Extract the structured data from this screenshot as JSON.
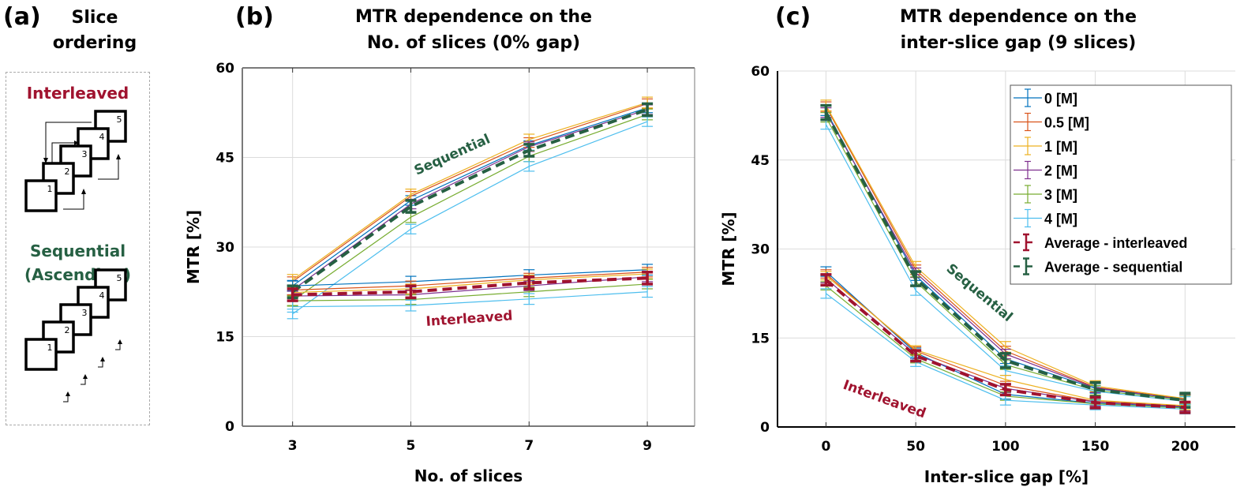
{
  "panel_a": {
    "label": "(a)",
    "title_line1": "Slice",
    "title_line2": "ordering",
    "interleaved_heading": "Interleaved",
    "sequential_heading_line1": "Sequential",
    "sequential_heading_line2": "(Ascending)",
    "slice_numbers": [
      "1",
      "2",
      "3",
      "4",
      "5"
    ],
    "colors": {
      "interleaved": "#a0132f",
      "sequential": "#266043"
    }
  },
  "chart_data": [
    {
      "id": "b",
      "type": "line",
      "label": "(b)",
      "title": "MTR dependence on the No. of slices (0% gap)",
      "title_line1": "MTR dependence on the",
      "title_line2": "No. of slices (0% gap)",
      "xlabel": "No. of slices",
      "ylabel": "MTR [%]",
      "x": [
        3,
        5,
        7,
        9
      ],
      "xticks": [
        "3",
        "5",
        "7",
        "9"
      ],
      "xlim": [
        2.15,
        9.8
      ],
      "ylim": [
        0,
        60
      ],
      "yticks": [
        "0",
        "15",
        "30",
        "45",
        "60"
      ],
      "grid": true,
      "annotations": [
        {
          "text": "Sequential",
          "color": "#266043"
        },
        {
          "text": "Interleaved",
          "color": "#a0132f"
        }
      ],
      "series": [
        {
          "name": "0 [M] - sequential",
          "color": "#0072bd",
          "values": [
            23.5,
            37.8,
            47.0,
            53.3
          ],
          "err": 0.8
        },
        {
          "name": "0.5 [M] - sequential",
          "color": "#d95319",
          "values": [
            24.2,
            38.5,
            47.5,
            54.0
          ],
          "err": 0.8
        },
        {
          "name": "1 [M] - sequential",
          "color": "#edb120",
          "values": [
            24.5,
            38.8,
            48.0,
            54.2
          ],
          "err": 0.9
        },
        {
          "name": "2 [M] - sequential",
          "color": "#7e2f8e",
          "values": [
            22.8,
            37.2,
            46.8,
            53.0
          ],
          "err": 0.8
        },
        {
          "name": "3 [M] - sequential",
          "color": "#77ac30",
          "values": [
            21.0,
            35.0,
            45.2,
            52.2
          ],
          "err": 0.9
        },
        {
          "name": "4 [M] - sequential",
          "color": "#4dbeee",
          "values": [
            18.8,
            33.0,
            43.5,
            51.0
          ],
          "err": 0.8
        },
        {
          "name": "0 [M] - interleaved",
          "color": "#0072bd",
          "values": [
            23.5,
            24.2,
            25.3,
            26.2
          ],
          "err": 0.9
        },
        {
          "name": "0.5 [M] - interleaved",
          "color": "#d95319",
          "values": [
            22.8,
            23.5,
            24.8,
            25.8
          ],
          "err": 0.8
        },
        {
          "name": "1 [M] - interleaved",
          "color": "#edb120",
          "values": [
            22.4,
            23.0,
            24.5,
            25.5
          ],
          "err": 0.8
        },
        {
          "name": "2 [M] - interleaved",
          "color": "#7e2f8e",
          "values": [
            21.8,
            22.0,
            23.5,
            25.0
          ],
          "err": 0.8
        },
        {
          "name": "3 [M] - interleaved",
          "color": "#77ac30",
          "values": [
            21.0,
            21.2,
            22.5,
            23.8
          ],
          "err": 0.8
        },
        {
          "name": "4 [M] - interleaved",
          "color": "#4dbeee",
          "values": [
            20.0,
            20.2,
            21.3,
            22.5
          ],
          "err": 0.9
        },
        {
          "name": "Average - sequential",
          "color": "#266043",
          "dashed": true,
          "thick": true,
          "values": [
            22.5,
            36.8,
            46.2,
            53.0
          ],
          "err": 1.0
        },
        {
          "name": "Average - interleaved",
          "color": "#a0132f",
          "dashed": true,
          "thick": true,
          "values": [
            22.0,
            22.5,
            24.0,
            24.8
          ],
          "err": 1.0
        }
      ]
    },
    {
      "id": "c",
      "type": "line",
      "label": "(c)",
      "title": "MTR dependence on the inter-slice gap (9 slices)",
      "title_line1": "MTR dependence on the",
      "title_line2": "inter-slice gap (9 slices)",
      "xlabel": "Inter-slice gap [%]",
      "ylabel": "MTR [%]",
      "x": [
        0,
        50,
        100,
        150,
        200
      ],
      "xticks": [
        "0",
        "50",
        "100",
        "150",
        "200"
      ],
      "xlim": [
        -27,
        228
      ],
      "ylim": [
        0,
        60
      ],
      "yticks": [
        "0",
        "15",
        "30",
        "45",
        "60"
      ],
      "grid": true,
      "legend": {
        "position": "top-right",
        "entries": [
          {
            "label": "0 [M]",
            "color": "#0072bd"
          },
          {
            "label": "0.5 [M]",
            "color": "#d95319"
          },
          {
            "label": "1 [M]",
            "color": "#edb120"
          },
          {
            "label": "2 [M]",
            "color": "#7e2f8e"
          },
          {
            "label": "3 [M]",
            "color": "#77ac30"
          },
          {
            "label": "4 [M]",
            "color": "#4dbeee"
          },
          {
            "label": "Average - interleaved",
            "color": "#a0132f",
            "dashed": true
          },
          {
            "label": "Average - sequential",
            "color": "#266043",
            "dashed": true
          }
        ]
      },
      "annotations": [
        {
          "text": "Sequential",
          "color": "#266043"
        },
        {
          "text": "Interleaved",
          "color": "#a0132f"
        }
      ],
      "series": [
        {
          "name": "0 [M] - sequential",
          "color": "#0072bd",
          "values": [
            53.3,
            25.5,
            11.5,
            6.5,
            4.6
          ],
          "err": 0.8
        },
        {
          "name": "0.5 [M] - sequential",
          "color": "#d95319",
          "values": [
            54.0,
            26.5,
            12.8,
            6.7,
            4.7
          ],
          "err": 0.8
        },
        {
          "name": "1 [M] - sequential",
          "color": "#edb120",
          "values": [
            54.2,
            27.0,
            13.5,
            6.9,
            4.8
          ],
          "err": 0.9
        },
        {
          "name": "2 [M] - sequential",
          "color": "#7e2f8e",
          "values": [
            53.0,
            26.0,
            12.3,
            6.6,
            4.6
          ],
          "err": 0.8
        },
        {
          "name": "3 [M] - sequential",
          "color": "#77ac30",
          "values": [
            52.2,
            24.5,
            10.5,
            6.2,
            4.5
          ],
          "err": 0.8
        },
        {
          "name": "4 [M] - sequential",
          "color": "#4dbeee",
          "values": [
            51.0,
            23.0,
            9.5,
            6.0,
            4.3
          ],
          "err": 0.8
        },
        {
          "name": "0 [M] - interleaved",
          "color": "#0072bd",
          "values": [
            26.2,
            12.5,
            5.5,
            4.0,
            3.3
          ],
          "err": 0.8
        },
        {
          "name": "0.5 [M] - interleaved",
          "color": "#d95319",
          "values": [
            25.8,
            12.8,
            7.0,
            4.3,
            3.5
          ],
          "err": 0.7
        },
        {
          "name": "1 [M] - interleaved",
          "color": "#edb120",
          "values": [
            25.5,
            13.0,
            8.0,
            4.5,
            3.6
          ],
          "err": 0.7
        },
        {
          "name": "2 [M] - interleaved",
          "color": "#7e2f8e",
          "values": [
            25.0,
            12.2,
            6.5,
            4.2,
            3.4
          ],
          "err": 0.7
        },
        {
          "name": "3 [M] - interleaved",
          "color": "#77ac30",
          "values": [
            23.8,
            11.5,
            5.2,
            3.9,
            3.2
          ],
          "err": 0.7
        },
        {
          "name": "4 [M] - interleaved",
          "color": "#4dbeee",
          "values": [
            22.5,
            11.0,
            4.5,
            3.7,
            3.0
          ],
          "err": 0.8
        },
        {
          "name": "Average - sequential",
          "color": "#266043",
          "dashed": true,
          "thick": true,
          "values": [
            53.0,
            25.0,
            11.2,
            6.3,
            4.5
          ],
          "err": 1.2
        },
        {
          "name": "Average - interleaved",
          "color": "#a0132f",
          "dashed": true,
          "thick": true,
          "values": [
            24.8,
            12.0,
            6.3,
            4.1,
            3.3
          ],
          "err": 0.9
        }
      ]
    }
  ]
}
